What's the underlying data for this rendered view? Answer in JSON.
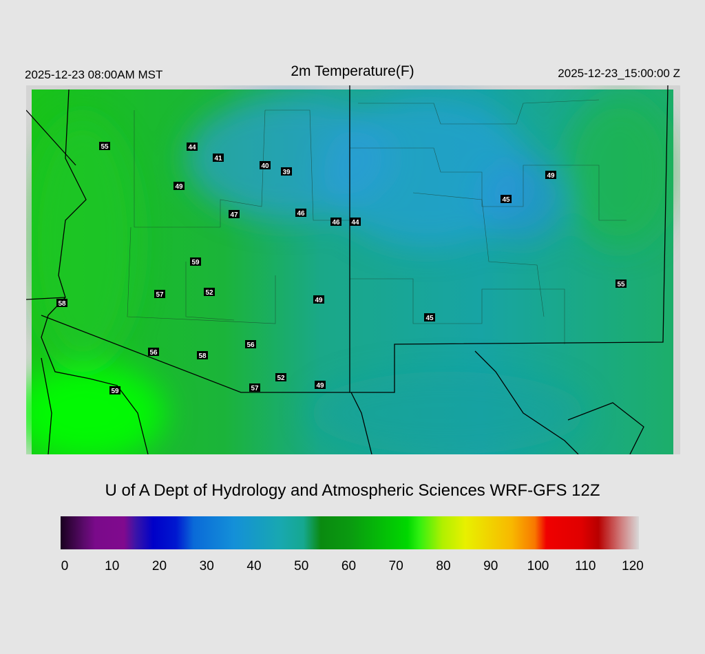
{
  "header": {
    "left": "2025-12-23 08:00AM MST",
    "title": "2m Temperature(F)",
    "right": "2025-12-23_15:00:00 Z"
  },
  "stations": [
    55,
    44,
    41,
    40,
    39,
    49,
    47,
    46,
    46,
    44,
    59,
    57,
    52,
    49,
    58,
    56,
    56,
    58,
    52,
    57,
    49,
    59,
    49,
    45,
    55,
    45
  ],
  "footer": "U of A Dept of Hydrology and Atmospheric Sciences WRF-GFS 12Z",
  "colorbar": {
    "ticks": [
      0,
      10,
      20,
      30,
      40,
      50,
      60,
      70,
      80,
      90,
      100,
      110,
      120
    ]
  }
}
